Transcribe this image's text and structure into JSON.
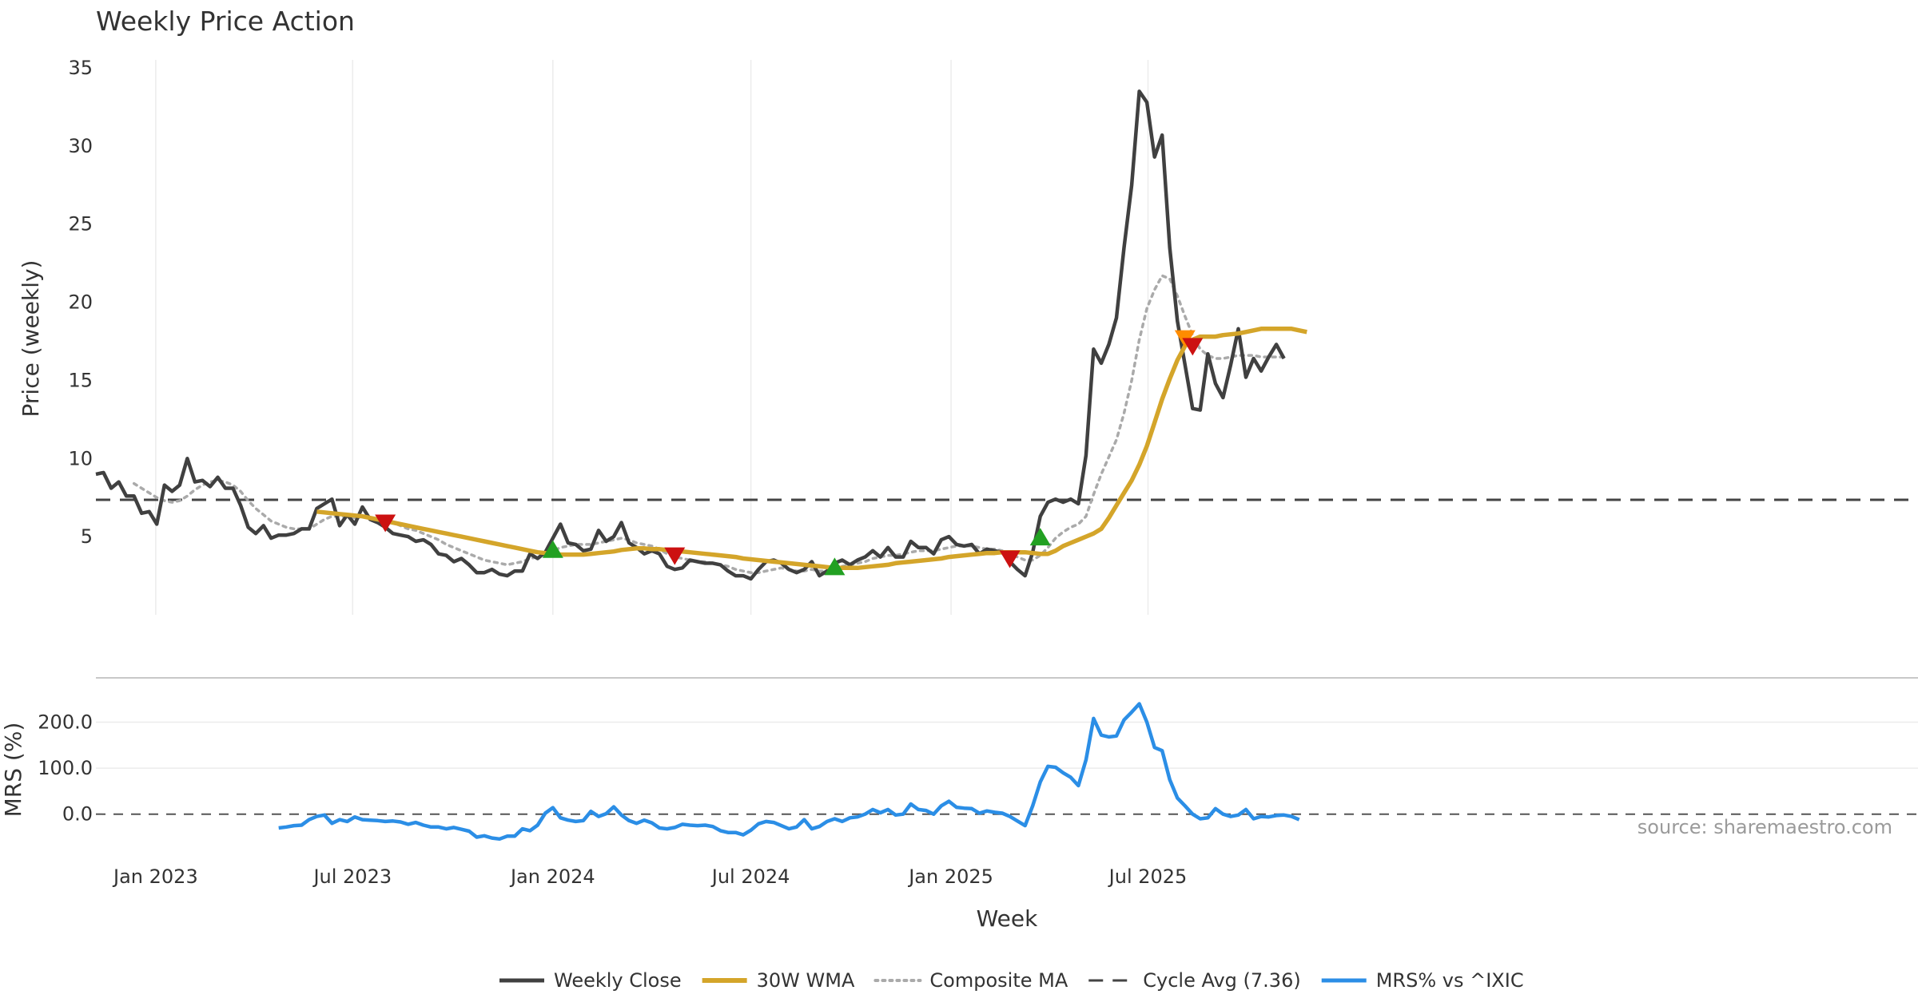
{
  "chart_data": [
    {
      "type": "line",
      "title": "Weekly Price Action",
      "ylabel": "Price (weekly)",
      "xlabel": "Week",
      "x_ticks": [
        "Jan 2023",
        "Jul 2023",
        "Jan 2024",
        "Jul 2024",
        "Jan 2025",
        "Jul 2025"
      ],
      "y_ticks": [
        "5",
        "10",
        "15",
        "20",
        "25",
        "30",
        "35"
      ],
      "ylim": [
        0,
        35
      ],
      "x_start": "2022-11-07",
      "cycle_avg": 7.36,
      "series": [
        {
          "name": "Weekly Close",
          "color": "#404040",
          "values": [
            9.0,
            9.1,
            8.1,
            8.5,
            7.6,
            7.6,
            6.5,
            6.6,
            5.8,
            8.3,
            7.9,
            8.3,
            10.0,
            8.5,
            8.6,
            8.2,
            8.8,
            8.1,
            8.1,
            7.0,
            5.6,
            5.2,
            5.7,
            4.9,
            5.1,
            5.1,
            5.2,
            5.5,
            5.5,
            6.8,
            7.1,
            7.4,
            5.7,
            6.4,
            5.8,
            6.9,
            6.1,
            5.9,
            5.6,
            5.2,
            5.1,
            5.0,
            4.7,
            4.8,
            4.5,
            3.9,
            3.8,
            3.4,
            3.6,
            3.2,
            2.7,
            2.7,
            2.9,
            2.6,
            2.5,
            2.8,
            2.8,
            3.9,
            3.6,
            4.0,
            4.9,
            5.8,
            4.6,
            4.5,
            4.1,
            4.2,
            5.4,
            4.7,
            5.0,
            5.9,
            4.6,
            4.3,
            3.9,
            4.1,
            3.9,
            3.1,
            2.9,
            3.0,
            3.5,
            3.4,
            3.3,
            3.3,
            3.2,
            2.8,
            2.5,
            2.5,
            2.3,
            2.9,
            3.4,
            3.5,
            3.3,
            2.9,
            2.7,
            2.9,
            3.4,
            2.5,
            2.8,
            3.3,
            3.5,
            3.2,
            3.5,
            3.7,
            4.1,
            3.7,
            4.3,
            3.7,
            3.7,
            4.7,
            4.3,
            4.3,
            3.9,
            4.8,
            5.0,
            4.5,
            4.4,
            4.5,
            3.9,
            4.2,
            4.1,
            4.0,
            3.4,
            2.9,
            2.5,
            4.0,
            6.3,
            7.2,
            7.4,
            7.2,
            7.4,
            7.1,
            10.2,
            17.0,
            16.1,
            17.3,
            19.0,
            23.5,
            27.5,
            33.5,
            32.8,
            29.3,
            30.7,
            23.5,
            18.8,
            16.0,
            13.2,
            13.1,
            16.7,
            14.8,
            13.9,
            16.0,
            18.3,
            15.2,
            16.4,
            15.6,
            16.5,
            17.3,
            16.4
          ]
        },
        {
          "name": "30W WMA",
          "color": "#d4a52a",
          "values": [
            null,
            null,
            null,
            null,
            null,
            null,
            null,
            null,
            null,
            null,
            null,
            null,
            null,
            null,
            null,
            null,
            null,
            null,
            null,
            null,
            null,
            null,
            null,
            null,
            null,
            null,
            null,
            null,
            null,
            6.6,
            6.55,
            6.5,
            6.45,
            6.4,
            6.35,
            6.3,
            6.2,
            6.1,
            6.0,
            5.9,
            5.8,
            5.7,
            5.6,
            5.5,
            5.4,
            5.3,
            5.2,
            5.1,
            5.0,
            4.9,
            4.8,
            4.7,
            4.6,
            4.5,
            4.4,
            4.3,
            4.2,
            4.1,
            4.0,
            3.95,
            3.9,
            3.85,
            3.85,
            3.85,
            3.85,
            3.9,
            3.95,
            4.0,
            4.05,
            4.15,
            4.2,
            4.25,
            4.25,
            4.2,
            4.2,
            4.15,
            4.1,
            4.05,
            4.0,
            3.95,
            3.9,
            3.85,
            3.8,
            3.75,
            3.7,
            3.6,
            3.55,
            3.5,
            3.45,
            3.4,
            3.35,
            3.3,
            3.25,
            3.2,
            3.15,
            3.1,
            3.05,
            3.0,
            3.0,
            3.0,
            3.0,
            3.05,
            3.1,
            3.15,
            3.2,
            3.3,
            3.35,
            3.4,
            3.45,
            3.5,
            3.55,
            3.6,
            3.7,
            3.75,
            3.8,
            3.85,
            3.9,
            3.95,
            3.95,
            4.0,
            4.0,
            4.0,
            4.0,
            3.95,
            3.9,
            3.9,
            4.1,
            4.4,
            4.6,
            4.8,
            5.0,
            5.2,
            5.5,
            6.2,
            7.0,
            7.8,
            8.6,
            9.6,
            10.8,
            12.3,
            13.8,
            15.1,
            16.3,
            17.2,
            17.6,
            17.8,
            17.8,
            17.8,
            17.9,
            17.95,
            18.0,
            18.1,
            18.2,
            18.3,
            18.3,
            18.3,
            18.3,
            18.3,
            18.2,
            18.1
          ]
        },
        {
          "name": "Composite MA",
          "color": "#aaaaaa",
          "values": [
            null,
            null,
            null,
            null,
            null,
            8.4,
            8.1,
            7.8,
            7.5,
            7.3,
            7.2,
            7.3,
            7.6,
            8.0,
            8.3,
            8.5,
            8.6,
            8.5,
            8.3,
            7.9,
            7.3,
            6.8,
            6.4,
            6.0,
            5.8,
            5.6,
            5.5,
            5.5,
            5.5,
            5.8,
            6.1,
            6.3,
            6.3,
            6.3,
            6.2,
            6.3,
            6.2,
            6.1,
            6.0,
            5.9,
            5.7,
            5.5,
            5.4,
            5.2,
            5.0,
            4.8,
            4.5,
            4.3,
            4.1,
            3.9,
            3.7,
            3.5,
            3.4,
            3.3,
            3.2,
            3.3,
            3.4,
            3.6,
            3.7,
            3.9,
            4.1,
            4.3,
            4.4,
            4.5,
            4.5,
            4.5,
            4.6,
            4.7,
            4.8,
            4.9,
            4.8,
            4.6,
            4.5,
            4.4,
            4.2,
            3.9,
            3.7,
            3.6,
            3.5,
            3.4,
            3.4,
            3.3,
            3.2,
            3.1,
            2.9,
            2.8,
            2.7,
            2.7,
            2.8,
            2.9,
            3.0,
            2.9,
            2.8,
            2.8,
            2.9,
            2.8,
            2.8,
            2.9,
            3.1,
            3.2,
            3.3,
            3.4,
            3.6,
            3.7,
            3.8,
            3.8,
            3.9,
            4.0,
            4.1,
            4.1,
            4.1,
            4.2,
            4.3,
            4.4,
            4.4,
            4.4,
            4.3,
            4.2,
            4.2,
            4.1,
            3.9,
            3.7,
            3.5,
            3.5,
            3.8,
            4.3,
            4.9,
            5.3,
            5.6,
            5.8,
            6.3,
            7.7,
            9.0,
            10.1,
            11.2,
            12.9,
            15.0,
            17.6,
            19.6,
            20.8,
            21.7,
            21.5,
            20.4,
            19.1,
            17.9,
            17.0,
            16.6,
            16.4,
            16.4,
            16.5,
            16.6,
            16.6,
            16.6,
            16.5,
            16.5,
            16.5,
            16.5
          ]
        },
        {
          "name": "Cycle Avg (7.36)",
          "color": "#444444",
          "values": [
            7.36
          ]
        }
      ],
      "signals": [
        {
          "type": "sell",
          "x_index": 38,
          "y": 5.9,
          "color": "#cc1111"
        },
        {
          "type": "buy",
          "x_index": 60,
          "y": 4.2,
          "color": "#22a022"
        },
        {
          "type": "sell",
          "x_index": 76,
          "y": 3.8,
          "color": "#cc1111"
        },
        {
          "type": "buy",
          "x_index": 97,
          "y": 3.1,
          "color": "#22a022"
        },
        {
          "type": "sell",
          "x_index": 120,
          "y": 3.6,
          "color": "#cc1111"
        },
        {
          "type": "buy",
          "x_index": 124,
          "y": 5.0,
          "color": "#22a022"
        },
        {
          "type": "sell",
          "x_index": 143,
          "y": 17.7,
          "color": "#ff8c00"
        },
        {
          "type": "sell",
          "x_index": 144,
          "y": 17.2,
          "color": "#cc1111"
        }
      ]
    },
    {
      "type": "line",
      "ylabel": "MRS (%)",
      "y_ticks": [
        "0.0",
        "100.0",
        "200.0"
      ],
      "ylim": [
        -70,
        260
      ],
      "series": [
        {
          "name": "MRS% vs ^IXIC",
          "color": "#2b8ee6",
          "values": [
            null,
            null,
            null,
            null,
            null,
            null,
            null,
            null,
            null,
            null,
            null,
            null,
            null,
            null,
            null,
            null,
            null,
            null,
            null,
            null,
            null,
            null,
            null,
            null,
            -30,
            -28,
            -25,
            -24,
            -12,
            -5,
            -2,
            -20,
            -12,
            -16,
            -6,
            -12,
            -13,
            -14,
            -16,
            -15,
            -17,
            -22,
            -18,
            -24,
            -28,
            -28,
            -32,
            -29,
            -33,
            -37,
            -50,
            -47,
            -52,
            -54,
            -48,
            -48,
            -32,
            -36,
            -24,
            2,
            14,
            -8,
            -13,
            -16,
            -14,
            6,
            -5,
            1,
            16,
            -2,
            -14,
            -20,
            -13,
            -19,
            -30,
            -32,
            -29,
            -22,
            -24,
            -25,
            -24,
            -27,
            -36,
            -40,
            -40,
            -45,
            -35,
            -21,
            -16,
            -18,
            -25,
            -32,
            -28,
            -12,
            -32,
            -27,
            -16,
            -10,
            -16,
            -8,
            -6,
            0,
            10,
            3,
            10,
            -2,
            0,
            22,
            10,
            8,
            0,
            18,
            28,
            15,
            13,
            12,
            2,
            7,
            4,
            2,
            -5,
            -15,
            -25,
            18,
            70,
            104,
            102,
            90,
            80,
            62,
            118,
            208,
            172,
            168,
            170,
            205,
            222,
            240,
            200,
            145,
            138,
            75,
            35,
            18,
            0,
            -10,
            -8,
            12,
            0,
            -5,
            -2,
            10,
            -10,
            -5,
            -6,
            -3,
            -2,
            -5,
            -12
          ]
        }
      ]
    }
  ],
  "source_text": "source: sharemaestro.com",
  "legend": [
    {
      "label": "Weekly Close",
      "style": "solid",
      "color": "#404040"
    },
    {
      "label": "30W WMA",
      "style": "solid",
      "color": "#d4a52a"
    },
    {
      "label": "Composite MA",
      "style": "dotted",
      "color": "#aaaaaa"
    },
    {
      "label": "Cycle Avg (7.36)",
      "style": "dashed",
      "color": "#444444"
    },
    {
      "label": "MRS% vs ^IXIC",
      "style": "solid",
      "color": "#2b8ee6"
    }
  ]
}
